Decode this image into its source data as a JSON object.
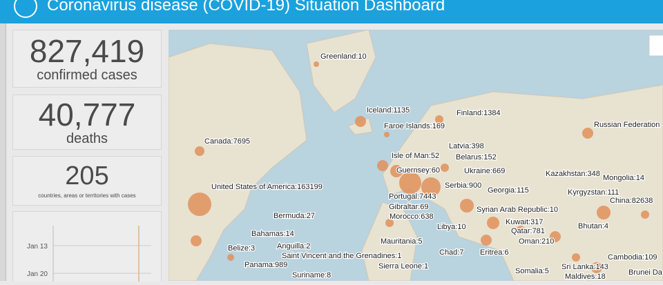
{
  "header": {
    "title": "Coronavirus disease (COVID-19) Situation Dashboard"
  },
  "cards": [
    {
      "value": "827,419",
      "label": "confirmed cases"
    },
    {
      "value": "40,777",
      "label": "deaths"
    },
    {
      "value": "205",
      "label": "countries, areas or territories with cases"
    }
  ],
  "timeline": {
    "labels": [
      "Jan 13",
      "Jan 20"
    ]
  },
  "map": {
    "labels": [
      "Greenland:10",
      "Iceland:1135",
      "Finland:1384",
      "Faroe Islands:169",
      "Russian Federation",
      "Canada:7695",
      "Latvia:398",
      "Isle of Man:52",
      "Belarus:152",
      "Guernsey:60",
      "Ukraine:669",
      "Kazakhstan:348",
      "Mongolia:14",
      "United States of America:163199",
      "Serbia:900",
      "Georgia:115",
      "Kyrgyzstan:111",
      "Portugal:7443",
      "China:82638",
      "Gibraltar:69",
      "Syrian Arab Republic:10",
      "Bermuda:27",
      "Morocco:638",
      "Kuwait:317",
      "Bahamas:14",
      "Libya:10",
      "Qatar:781",
      "Bhutan:4",
      "Oman:210",
      "Mauritania:5",
      "Belize:3",
      "Anguilla:2",
      "Chad:7",
      "Eritrea:6",
      "Cambodia:109",
      "Saint Vincent and the Grenadines:1",
      "Panama:989",
      "Sierra Leone:1",
      "Sri Lanka:143",
      "Somalia:5",
      "Suriname:8",
      "Maldives:18",
      "Brunei Da"
    ]
  }
}
